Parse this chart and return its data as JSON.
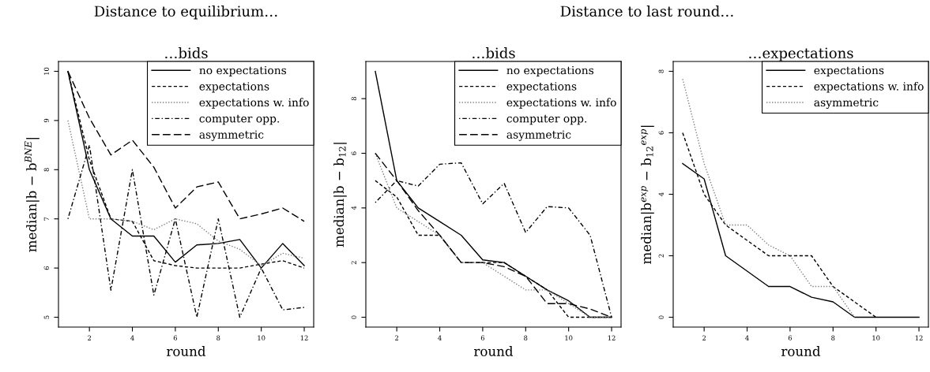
{
  "chart_data": [
    {
      "type": "line",
      "title": "Distance to equilibrium…",
      "subtitle": "…bids",
      "xlabel": "round",
      "ylabel": "median|b − b$^{BNE}$|",
      "x": [
        1,
        2,
        3,
        4,
        5,
        6,
        7,
        8,
        9,
        10,
        11,
        12
      ],
      "xlim": [
        0.56,
        12.44
      ],
      "xticks": [
        2,
        4,
        6,
        8,
        10,
        12
      ],
      "ylim": [
        4.8,
        10.2
      ],
      "yticks": [
        5,
        6,
        7,
        8,
        9,
        10
      ],
      "grid": false,
      "legend": "top right",
      "marker": "none",
      "series": [
        {
          "name": "no expectations",
          "color": "#000000",
          "line_style": "solid",
          "values": [
            10,
            8.0,
            7.0,
            6.65,
            6.65,
            6.12,
            6.47,
            6.5,
            6.58,
            6.0,
            6.5,
            6.05
          ]
        },
        {
          "name": "expectations",
          "color": "#000000",
          "line_style": "dashed",
          "values": [
            10,
            8.2,
            7.0,
            6.95,
            6.15,
            6.05,
            6.0,
            6.0,
            6.0,
            6.08,
            6.15,
            6.0
          ]
        },
        {
          "name": "expectations w. info",
          "color": "#808080",
          "line_style": "dotted",
          "values": [
            9.0,
            7.0,
            7.0,
            6.95,
            6.78,
            7.0,
            6.9,
            6.55,
            6.38,
            6.05,
            6.3,
            6.2
          ]
        },
        {
          "name": "computer opp.",
          "color": "#000000",
          "line_style": "dashdot",
          "values": [
            7.0,
            8.5,
            5.55,
            8.0,
            5.45,
            7.0,
            5.0,
            7.0,
            5.0,
            6.0,
            5.15,
            5.2
          ]
        },
        {
          "name": "asymmetric",
          "color": "#000000",
          "line_style": "longdash",
          "values": [
            10,
            9.05,
            8.3,
            8.6,
            8.05,
            7.22,
            7.65,
            7.75,
            7.0,
            7.1,
            7.22,
            6.95
          ]
        }
      ]
    },
    {
      "type": "line",
      "title": "Distance to last round…",
      "subtitle": "…bids",
      "xlabel": "round",
      "ylabel": "median|b − b$_{12}$|",
      "x": [
        1,
        2,
        3,
        4,
        5,
        6,
        7,
        8,
        9,
        10,
        11,
        12
      ],
      "xlim": [
        0.56,
        12.44
      ],
      "xticks": [
        2,
        4,
        6,
        8,
        10,
        12
      ],
      "ylim": [
        -0.36,
        9.36
      ],
      "yticks": [
        0,
        2,
        4,
        6,
        8
      ],
      "grid": false,
      "legend": "top right",
      "marker": "none",
      "series": [
        {
          "name": "no expectations",
          "color": "#000000",
          "line_style": "solid",
          "values": [
            9.0,
            5.0,
            4.0,
            3.5,
            3.0,
            2.1,
            2.0,
            1.5,
            1.0,
            0.6,
            0,
            0
          ]
        },
        {
          "name": "expectations",
          "color": "#000000",
          "line_style": "dashed",
          "values": [
            5.0,
            4.4,
            3.0,
            3.0,
            2.0,
            2.0,
            2.0,
            1.5,
            1.0,
            0,
            0,
            0
          ]
        },
        {
          "name": "expectations w. info",
          "color": "#808080",
          "line_style": "dotted",
          "values": [
            6.0,
            4.0,
            3.5,
            3.0,
            2.0,
            2.0,
            1.5,
            1.0,
            1.0,
            0.5,
            0,
            0
          ]
        },
        {
          "name": "computer opp.",
          "color": "#000000",
          "line_style": "dashdot",
          "values": [
            4.2,
            5.0,
            4.8,
            5.6,
            5.65,
            4.15,
            4.9,
            3.1,
            4.05,
            4.0,
            3.0,
            0
          ]
        },
        {
          "name": "asymmetric",
          "color": "#000000",
          "line_style": "longdash",
          "values": [
            6.0,
            5.0,
            3.9,
            3.0,
            2.0,
            2.0,
            1.85,
            1.5,
            0.5,
            0.5,
            0.3,
            0
          ]
        }
      ]
    },
    {
      "type": "line",
      "subtitle": "…expectations",
      "xlabel": "round",
      "ylabel": "median|b$^{exp}$ − b$_{12}$$^{exp}$|",
      "x": [
        1,
        2,
        3,
        4,
        5,
        6,
        7,
        8,
        9,
        10,
        11,
        12
      ],
      "xlim": [
        0.56,
        12.44
      ],
      "xticks": [
        2,
        4,
        6,
        8,
        10,
        12
      ],
      "ylim": [
        -0.32,
        8.32
      ],
      "yticks": [
        0,
        2,
        4,
        6,
        8
      ],
      "grid": false,
      "legend": "top right",
      "marker": "none",
      "series": [
        {
          "name": "expectations",
          "color": "#000000",
          "line_style": "solid",
          "values": [
            5.0,
            4.5,
            2.0,
            1.5,
            1.0,
            1.0,
            0.65,
            0.5,
            0,
            0,
            0,
            0
          ]
        },
        {
          "name": "expectations w. info",
          "color": "#000000",
          "line_style": "dashed",
          "values": [
            6.0,
            4.0,
            3.0,
            2.5,
            2.0,
            2.0,
            2.0,
            1.0,
            0.5,
            0,
            null,
            null
          ]
        },
        {
          "name": "asymmetric",
          "color": "#808080",
          "line_style": "dotted",
          "values": [
            7.75,
            5.0,
            3.0,
            3.0,
            2.35,
            2.0,
            1.0,
            1.0,
            0,
            null,
            null,
            null
          ]
        }
      ]
    }
  ]
}
